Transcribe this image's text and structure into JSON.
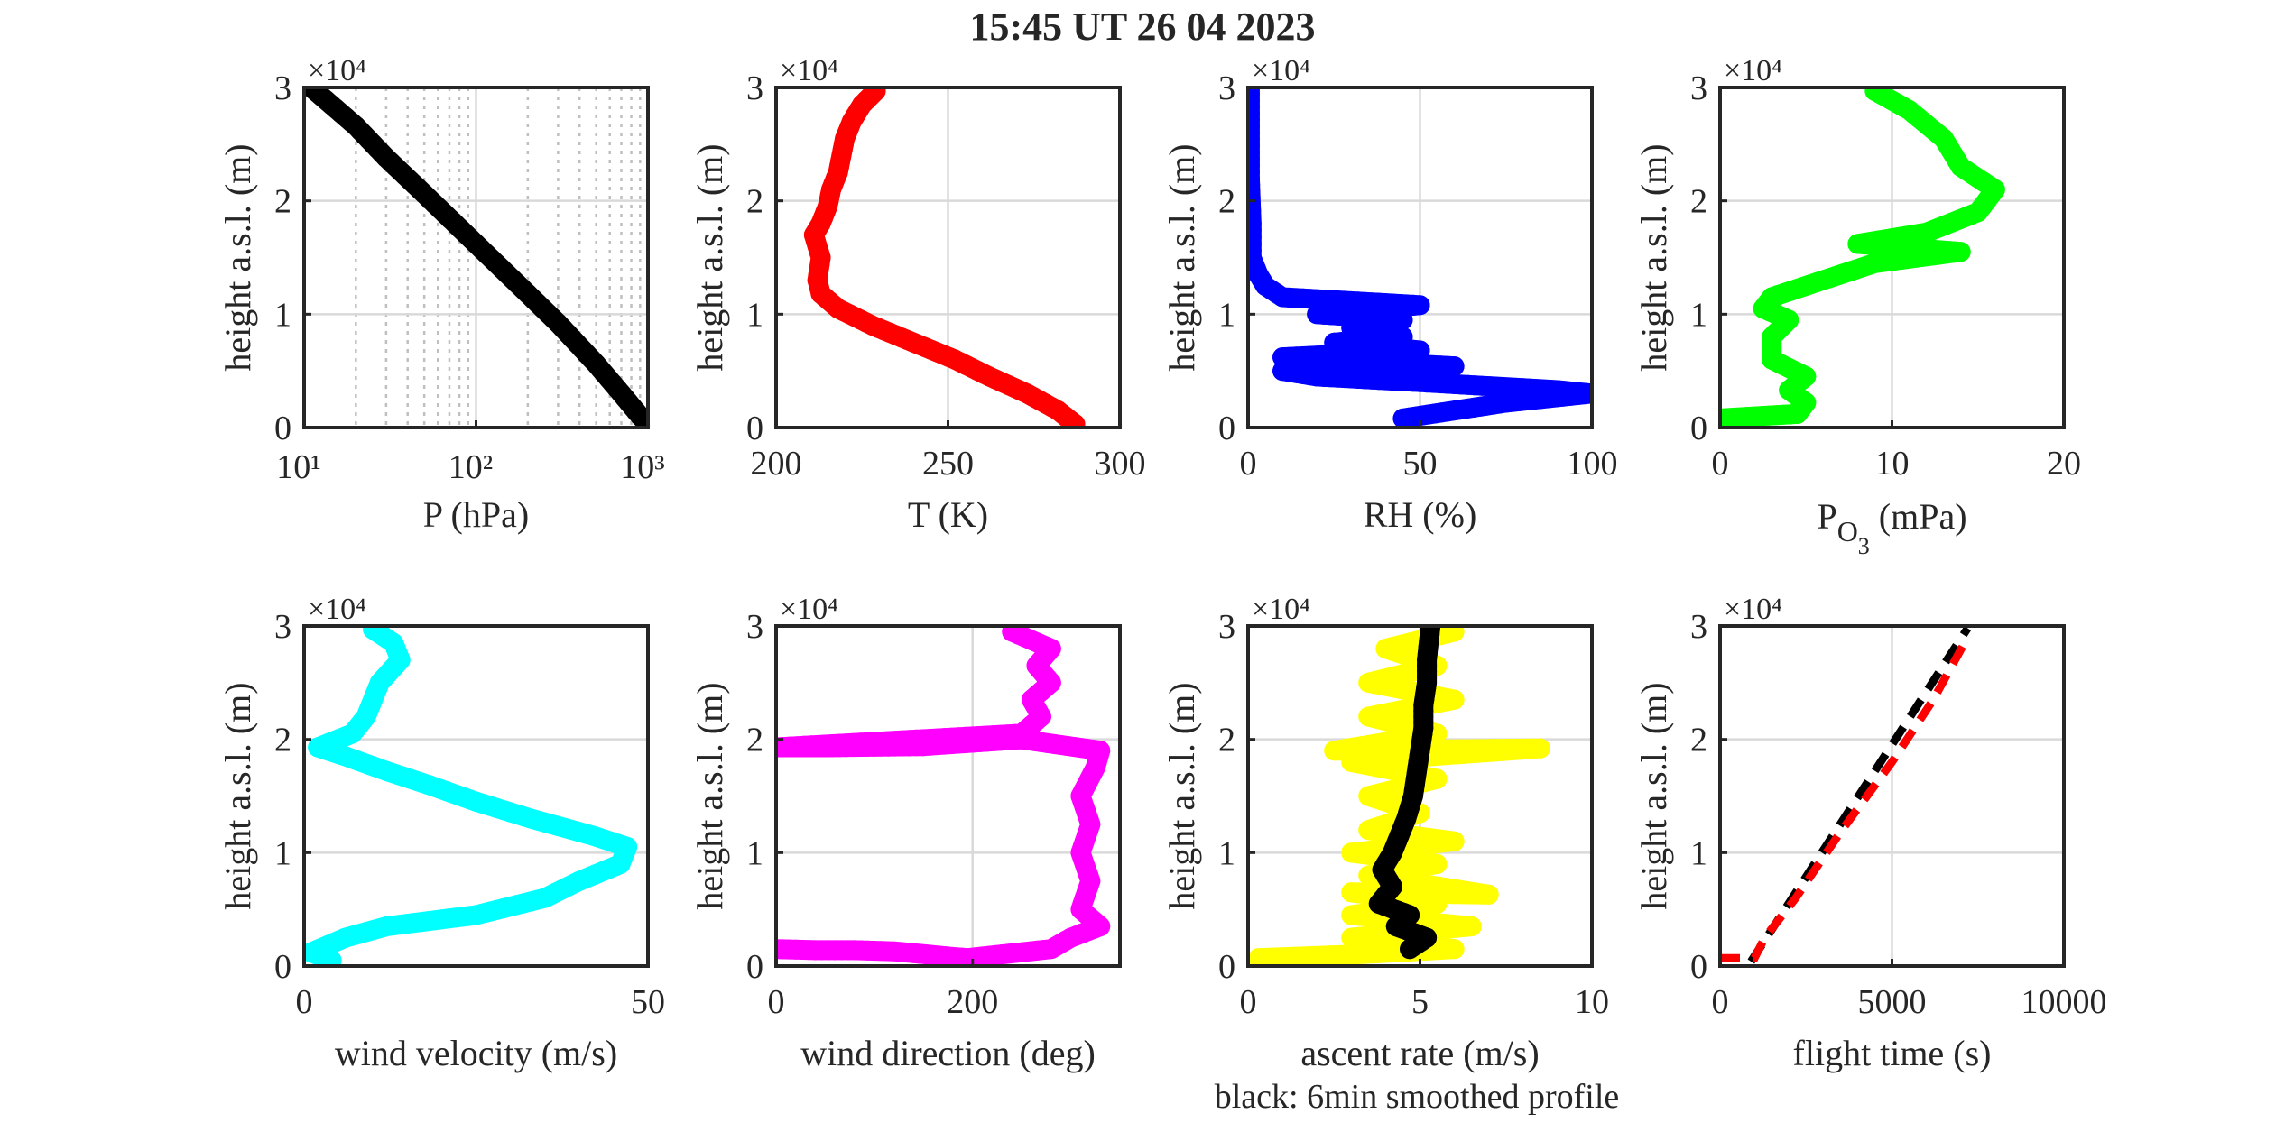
{
  "figure": {
    "title": "15:45 UT  26 04 2023",
    "footnote": "black: 6min smoothed profile"
  },
  "colors": {
    "axis": "#262626",
    "grid": "#d9d9d9",
    "black": "#000000",
    "red": "#ff0000",
    "blue": "#0000ff",
    "green": "#00ff00",
    "cyan": "#00ffff",
    "magenta": "#ff00ff",
    "yellow": "#ffff00"
  },
  "chart_data": [
    {
      "id": "pressure",
      "type": "scatter",
      "xlabel": "P (hPa)",
      "ylabel": "height a.s.l. (m)",
      "yexponent": "×10⁴",
      "xscale": "log",
      "xlim": [
        10,
        1000
      ],
      "ylim": [
        0,
        30000
      ],
      "xticks": [
        10,
        100,
        1000
      ],
      "xticklabels": [
        "10¹",
        "10²",
        "10³"
      ],
      "yticks": [
        0,
        10000,
        20000,
        30000
      ],
      "yticklabels": [
        "0",
        "1",
        "2",
        "3"
      ],
      "series": [
        {
          "color": "black",
          "points": [
            [
              1000,
              300
            ],
            [
              900,
              1000
            ],
            [
              700,
              3000
            ],
            [
              500,
              5600
            ],
            [
              300,
              9200
            ],
            [
              200,
              11800
            ],
            [
              100,
              16200
            ],
            [
              50,
              20600
            ],
            [
              30,
              23800
            ],
            [
              20,
              26600
            ],
            [
              11,
              30000
            ]
          ]
        }
      ]
    },
    {
      "id": "temperature",
      "type": "scatter",
      "xlabel": "T (K)",
      "ylabel": "height a.s.l. (m)",
      "yexponent": "×10⁴",
      "xlim": [
        200,
        300
      ],
      "ylim": [
        0,
        30000
      ],
      "xticks": [
        200,
        250,
        300
      ],
      "xticklabels": [
        "200",
        "250",
        "300"
      ],
      "yticks": [
        0,
        10000,
        20000,
        30000
      ],
      "yticklabels": [
        "0",
        "1",
        "2",
        "3"
      ],
      "series": [
        {
          "color": "red",
          "points": [
            [
              287,
              300
            ],
            [
              282,
              1500
            ],
            [
              273,
              3000
            ],
            [
              262,
              4500
            ],
            [
              252,
              6000
            ],
            [
              240,
              7500
            ],
            [
              228,
              9000
            ],
            [
              218,
              10500
            ],
            [
              213,
              11800
            ],
            [
              212,
              13000
            ],
            [
              213,
              15000
            ],
            [
              211,
              17000
            ],
            [
              213,
              18000
            ],
            [
              215,
              19500
            ],
            [
              216,
              21000
            ],
            [
              218,
              22500
            ],
            [
              219,
              24000
            ],
            [
              220,
              25500
            ],
            [
              222,
              27000
            ],
            [
              225,
              28500
            ],
            [
              229,
              29700
            ]
          ]
        }
      ]
    },
    {
      "id": "humidity",
      "type": "scatter",
      "xlabel": "RH (%)",
      "ylabel": "height a.s.l. (m)",
      "yexponent": "×10⁴",
      "xlim": [
        0,
        100
      ],
      "ylim": [
        0,
        30000
      ],
      "xticks": [
        0,
        50,
        100
      ],
      "xticklabels": [
        "0",
        "50",
        "100"
      ],
      "yticks": [
        0,
        10000,
        20000,
        30000
      ],
      "yticklabels": [
        "0",
        "1",
        "2",
        "3"
      ],
      "series": [
        {
          "color": "blue",
          "points": [
            [
              45,
              800
            ],
            [
              60,
              1500
            ],
            [
              75,
              2200
            ],
            [
              100,
              3000
            ],
            [
              90,
              3300
            ],
            [
              50,
              4000
            ],
            [
              20,
              4500
            ],
            [
              10,
              5000
            ],
            [
              60,
              5400
            ],
            [
              30,
              5900
            ],
            [
              10,
              6200
            ],
            [
              50,
              6800
            ],
            [
              25,
              7500
            ],
            [
              45,
              8000
            ],
            [
              30,
              8800
            ],
            [
              45,
              9500
            ],
            [
              20,
              10000
            ],
            [
              50,
              10800
            ],
            [
              10,
              11500
            ],
            [
              5,
              12500
            ],
            [
              3,
              13500
            ],
            [
              1,
              15000
            ],
            [
              1,
              18000
            ],
            [
              0.5,
              22000
            ],
            [
              0.5,
              26000
            ],
            [
              0.5,
              30000
            ]
          ]
        }
      ]
    },
    {
      "id": "ozone",
      "type": "scatter",
      "xlabel": "P",
      "xlabel_sub": "O",
      "xlabel_subsub": "3",
      "xlabel_rest": "(mPa)",
      "ylabel": "height a.s.l. (m)",
      "yexponent": "×10⁴",
      "xlim": [
        0,
        20
      ],
      "ylim": [
        0,
        30000
      ],
      "xticks": [
        0,
        10,
        20
      ],
      "xticklabels": [
        "0",
        "10",
        "20"
      ],
      "yticks": [
        0,
        10000,
        20000,
        30000
      ],
      "yticklabels": [
        "0",
        "1",
        "2",
        "3"
      ],
      "series": [
        {
          "color": "green",
          "points": [
            [
              0,
              800
            ],
            [
              4.5,
              1200
            ],
            [
              5,
              2200
            ],
            [
              4,
              3300
            ],
            [
              5,
              4500
            ],
            [
              3,
              6000
            ],
            [
              3,
              8000
            ],
            [
              4,
              9500
            ],
            [
              2.5,
              10500
            ],
            [
              3,
              11500
            ],
            [
              6,
              13000
            ],
            [
              9,
              14500
            ],
            [
              14,
              15500
            ],
            [
              8,
              16200
            ],
            [
              12,
              17200
            ],
            [
              15,
              19000
            ],
            [
              16,
              21000
            ],
            [
              14,
              23000
            ],
            [
              13,
              25500
            ],
            [
              11,
              28000
            ],
            [
              9,
              29700
            ]
          ]
        }
      ]
    },
    {
      "id": "wind-velocity",
      "type": "scatter",
      "xlabel": "wind velocity (m/s)",
      "ylabel": "height a.s.l. (m)",
      "yexponent": "×10⁴",
      "xlim": [
        0,
        50
      ],
      "ylim": [
        0,
        30000
      ],
      "xticks": [
        0,
        50
      ],
      "xticklabels": [
        "0",
        "50"
      ],
      "yticks": [
        0,
        10000,
        20000,
        30000
      ],
      "yticklabels": [
        "0",
        "1",
        "2",
        "3"
      ],
      "series": [
        {
          "color": "cyan",
          "points": [
            [
              4,
              500
            ],
            [
              1,
              1200
            ],
            [
              6,
              2500
            ],
            [
              12,
              3500
            ],
            [
              25,
              4500
            ],
            [
              35,
              6000
            ],
            [
              40,
              7500
            ],
            [
              46,
              9000
            ],
            [
              47,
              10500
            ],
            [
              42,
              11500
            ],
            [
              33,
              13000
            ],
            [
              25,
              14500
            ],
            [
              18,
              16000
            ],
            [
              12,
              17200
            ],
            [
              6,
              18500
            ],
            [
              2,
              19300
            ],
            [
              7,
              20500
            ],
            [
              9,
              22000
            ],
            [
              10,
              23500
            ],
            [
              11,
              25000
            ],
            [
              14,
              27000
            ],
            [
              13,
              28500
            ],
            [
              10,
              29700
            ]
          ]
        }
      ]
    },
    {
      "id": "wind-direction",
      "type": "scatter",
      "xlabel": "wind direction (deg)",
      "ylabel": "height a.s.l. (m)",
      "yexponent": "×10⁴",
      "xlim": [
        0,
        350
      ],
      "ylim": [
        0,
        30000
      ],
      "xticks": [
        0,
        200
      ],
      "xticklabels": [
        "0",
        "200"
      ],
      "yticks": [
        0,
        10000,
        20000,
        30000
      ],
      "yticklabels": [
        "0",
        "1",
        "2",
        "3"
      ],
      "series": [
        {
          "color": "magenta",
          "points": [
            [
              0,
              1500
            ],
            [
              40,
              1400
            ],
            [
              80,
              1400
            ],
            [
              120,
              1300
            ],
            [
              180,
              800
            ],
            [
              195,
              700
            ],
            [
              280,
              1500
            ],
            [
              300,
              2500
            ],
            [
              330,
              3500
            ],
            [
              310,
              5000
            ],
            [
              320,
              7500
            ],
            [
              310,
              10000
            ],
            [
              320,
              12500
            ],
            [
              310,
              15000
            ],
            [
              325,
              17500
            ],
            [
              330,
              19000
            ],
            [
              290,
              19500
            ],
            [
              250,
              20000
            ],
            [
              150,
              19400
            ],
            [
              50,
              19300
            ],
            [
              0,
              19300
            ],
            [
              250,
              20500
            ],
            [
              270,
              22000
            ],
            [
              260,
              23500
            ],
            [
              280,
              25000
            ],
            [
              265,
              26500
            ],
            [
              280,
              28000
            ],
            [
              240,
              29500
            ]
          ]
        }
      ]
    },
    {
      "id": "ascent-rate",
      "type": "scatter",
      "xlabel": "ascent rate (m/s)",
      "ylabel": "height a.s.l. (m)",
      "yexponent": "×10⁴",
      "xlim": [
        0,
        10
      ],
      "ylim": [
        0,
        30000
      ],
      "xticks": [
        0,
        5,
        10
      ],
      "xticklabels": [
        "0",
        "5",
        "10"
      ],
      "yticks": [
        0,
        10000,
        20000,
        30000
      ],
      "yticklabels": [
        "0",
        "1",
        "2",
        "3"
      ],
      "series": [
        {
          "color": "yellow",
          "points": [
            [
              0.3,
              700
            ],
            [
              3,
              1000
            ],
            [
              6,
              1500
            ],
            [
              3,
              2500
            ],
            [
              6.5,
              3500
            ],
            [
              3,
              4500
            ],
            [
              5.5,
              5500
            ],
            [
              3,
              6500
            ],
            [
              7,
              6300
            ],
            [
              3.5,
              8000
            ],
            [
              5.5,
              9000
            ],
            [
              3,
              10000
            ],
            [
              6,
              11000
            ],
            [
              3.5,
              12000
            ],
            [
              5,
              13500
            ],
            [
              3.5,
              15000
            ],
            [
              5.5,
              16500
            ],
            [
              3,
              18000
            ],
            [
              8.5,
              19200
            ],
            [
              2.5,
              19000
            ],
            [
              5.5,
              20500
            ],
            [
              3.5,
              22000
            ],
            [
              6,
              23500
            ],
            [
              3.5,
              25000
            ],
            [
              5.5,
              26500
            ],
            [
              4,
              28000
            ],
            [
              6,
              29500
            ]
          ]
        },
        {
          "color": "black",
          "points": [
            [
              4.7,
              1500
            ],
            [
              5.2,
              2500
            ],
            [
              4.3,
              3500
            ],
            [
              4.7,
              4500
            ],
            [
              3.8,
              5500
            ],
            [
              4.2,
              7000
            ],
            [
              3.9,
              8500
            ],
            [
              4.2,
              10000
            ],
            [
              4.4,
              11500
            ],
            [
              4.6,
              13000
            ],
            [
              4.8,
              15000
            ],
            [
              4.9,
              17000
            ],
            [
              5.0,
              19000
            ],
            [
              5.1,
              21000
            ],
            [
              5.1,
              23000
            ],
            [
              5.2,
              25000
            ],
            [
              5.2,
              27000
            ],
            [
              5.3,
              29800
            ]
          ]
        }
      ]
    },
    {
      "id": "flight-time",
      "type": "line",
      "xlabel": "flight time (s)",
      "ylabel": "height a.s.l. (m)",
      "yexponent": "×10⁴",
      "xlim": [
        0,
        10000
      ],
      "ylim": [
        0,
        30000
      ],
      "xticks": [
        0,
        5000,
        10000
      ],
      "xticklabels": [
        "0",
        "5000",
        "10000"
      ],
      "yticks": [
        0,
        10000,
        20000,
        30000
      ],
      "yticklabels": [
        "0",
        "1",
        "2",
        "3"
      ],
      "series": [
        {
          "color": "black",
          "style": "dashed",
          "points": [
            [
              900,
              400
            ],
            [
              7200,
              29800
            ]
          ]
        },
        {
          "color": "red",
          "style": "dashed",
          "points": [
            [
              0,
              700
            ],
            [
              1000,
              700
            ],
            [
              1300,
              2500
            ],
            [
              2200,
              6000
            ],
            [
              3500,
              11800
            ],
            [
              5000,
              18000
            ],
            [
              6200,
              23500
            ],
            [
              7200,
              29000
            ]
          ]
        }
      ]
    }
  ]
}
